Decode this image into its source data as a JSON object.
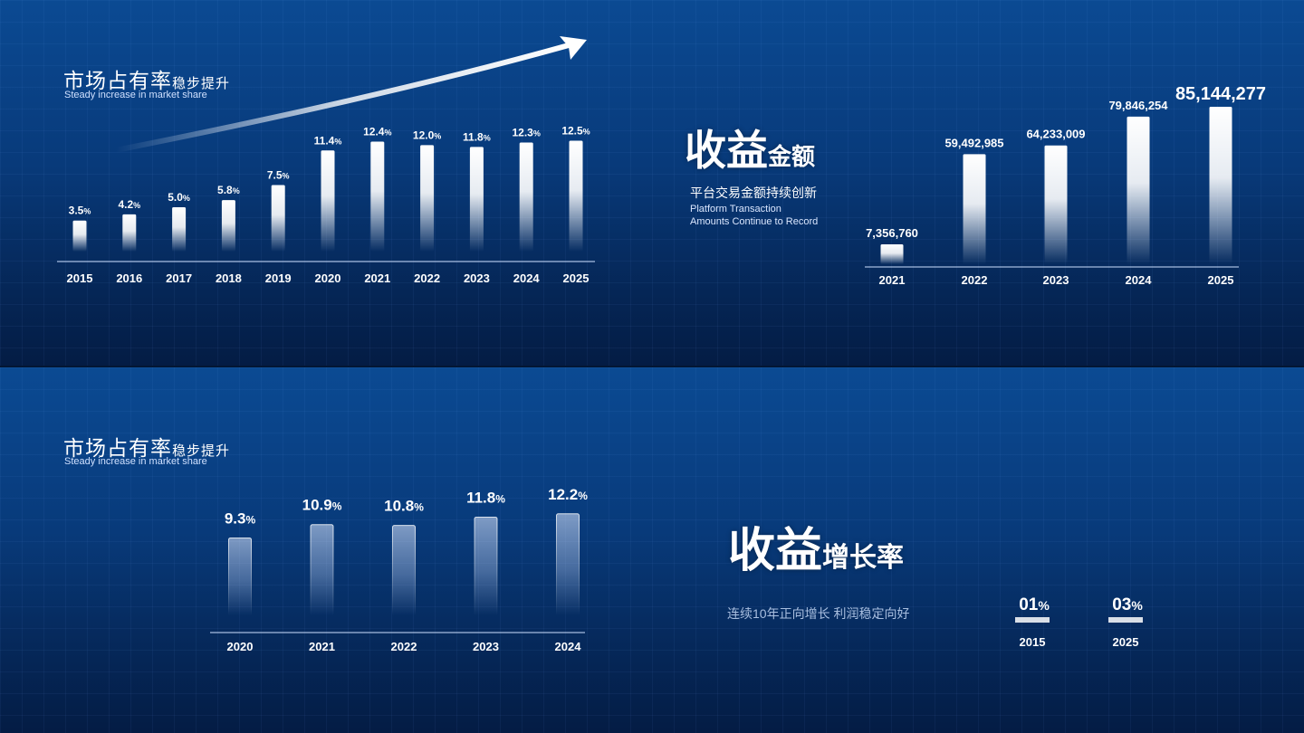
{
  "panels": {
    "market_share_1": {
      "title_cn_main": "市场占有率",
      "title_cn_small": "稳步提升",
      "title_en": "Steady increase in market share"
    },
    "revenue": {
      "title_large": "收益",
      "title_small": "金额",
      "subtitle_cn": "平台交易金额持续创新",
      "subtitle_en_line1": "Platform Transaction",
      "subtitle_en_line2": "Amounts Continue to Record"
    },
    "market_share_2": {
      "title_cn_main": "市场占有率",
      "title_cn_small": "稳步提升",
      "title_en": "Steady increase in market share"
    },
    "growth_rate": {
      "title_large": "收益",
      "title_small": "增长率",
      "subtitle_cn": "连续10年正向增长  利润稳定向好"
    }
  },
  "colors": {
    "background_top": "#0b4a93",
    "background_bottom": "#041c44",
    "bar": "#ffffff",
    "text": "#ffffff",
    "accent_gray": "#a9bfe0"
  },
  "chart_data": [
    {
      "id": "market_share_2015_2025",
      "type": "bar",
      "categories": [
        "2015",
        "2016",
        "2017",
        "2018",
        "2019",
        "2020",
        "2021",
        "2022",
        "2023",
        "2024",
        "2025"
      ],
      "values": [
        3.5,
        4.2,
        5.0,
        5.8,
        7.5,
        11.4,
        12.4,
        12.0,
        11.8,
        12.3,
        12.5
      ],
      "value_labels": [
        "3.5",
        "4.2",
        "5.0",
        "5.8",
        "7.5",
        "11.4",
        "12.4",
        "12.0",
        "11.8",
        "12.3",
        "12.5"
      ],
      "unit": "%",
      "annotation": "upward trend arrow",
      "grid": false
    },
    {
      "id": "revenue_amount_2021_2025",
      "type": "bar",
      "categories": [
        "2021",
        "2022",
        "2023",
        "2024",
        "2025"
      ],
      "values": [
        7356760,
        59492985,
        64233009,
        79846254,
        85144277
      ],
      "value_labels": [
        "7,356,760",
        "59,492,985",
        "64,233,009",
        "79,846,254",
        "85,144,277"
      ],
      "grid": false
    },
    {
      "id": "market_share_2020_2024",
      "type": "bar",
      "categories": [
        "2020",
        "2021",
        "2022",
        "2023",
        "2024"
      ],
      "values": [
        9.3,
        10.9,
        10.8,
        11.8,
        12.2
      ],
      "value_labels": [
        "9.3",
        "10.9",
        "10.8",
        "11.8",
        "12.2"
      ],
      "unit": "%",
      "grid": false
    },
    {
      "id": "revenue_growth_2015_2025",
      "type": "bar",
      "categories": [
        "2015",
        "2025"
      ],
      "value_labels": [
        "01",
        "03"
      ],
      "unit": "%",
      "note": "animated digits captured mid-transition",
      "grid": false
    }
  ]
}
